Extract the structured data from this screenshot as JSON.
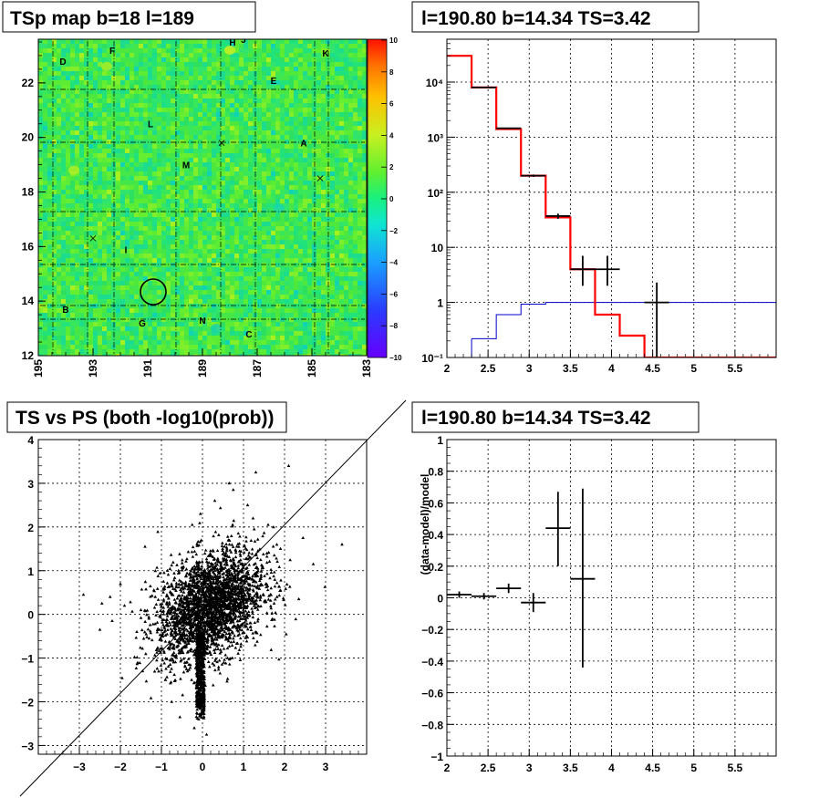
{
  "colors": {
    "model_line": "#ff0000",
    "background_line": "#0000cc",
    "data_marker": "#000000"
  },
  "chart_data": [
    {
      "type": "heatmap",
      "title": "TSp map b=18 l=189",
      "xlim": [
        195,
        183
      ],
      "ylim": [
        12,
        23.6
      ],
      "x_ticks": [
        "195",
        "193",
        "191",
        "189",
        "187",
        "185",
        "183"
      ],
      "y_ticks": [
        "12",
        "14",
        "16",
        "18",
        "20",
        "22"
      ],
      "colorbar": {
        "range": [
          -10,
          10
        ],
        "ticks": [
          "10",
          "8",
          "6",
          "4",
          "2",
          "0",
          "−2",
          "−4",
          "−6",
          "−8",
          "−10"
        ]
      },
      "dominant_level": 0.5,
      "labeled_sources": [
        {
          "name": "D",
          "l": 194.1,
          "b": 22.8
        },
        {
          "name": "F",
          "l": 192.3,
          "b": 23.2
        },
        {
          "name": "H",
          "l": 187.9,
          "b": 23.5
        },
        {
          "name": "J",
          "l": 187.5,
          "b": 23.6
        },
        {
          "name": "K",
          "l": 184.5,
          "b": 23.1
        },
        {
          "name": "E",
          "l": 186.4,
          "b": 22.1
        },
        {
          "name": "L",
          "l": 190.9,
          "b": 20.5
        },
        {
          "name": "A",
          "l": 185.3,
          "b": 19.8
        },
        {
          "name": "M",
          "l": 189.6,
          "b": 19.0
        },
        {
          "name": "I",
          "l": 191.8,
          "b": 15.9
        },
        {
          "name": "B",
          "l": 194.0,
          "b": 13.7
        },
        {
          "name": "G",
          "l": 191.2,
          "b": 13.2
        },
        {
          "name": "N",
          "l": 189.0,
          "b": 13.3
        },
        {
          "name": "C",
          "l": 187.3,
          "b": 12.8
        }
      ],
      "selected_circle": {
        "l": 190.8,
        "b": 14.34
      },
      "cross_markers": [
        {
          "l": 188.3,
          "b": 19.8
        },
        {
          "l": 184.7,
          "b": 18.5
        },
        {
          "l": 193.0,
          "b": 16.3
        }
      ]
    },
    {
      "type": "line",
      "title": "l=190.80 b=14.34 TS=3.42",
      "xlim": [
        2,
        6
      ],
      "ylim": [
        0.1,
        60000
      ],
      "log_y": true,
      "x_ticks": [
        "2",
        "2.5",
        "3",
        "3.5",
        "4",
        "4.5",
        "5",
        "5.5"
      ],
      "y_ticks": [
        "10⁻¹",
        "1",
        "10",
        "10²",
        "10³",
        "10⁴"
      ],
      "grid": true,
      "model_steps": {
        "edges": [
          2,
          2.3,
          2.6,
          2.9,
          3.2,
          3.5,
          3.8,
          4.1,
          4.4,
          6
        ],
        "values": [
          30000,
          8000,
          1400,
          200,
          35,
          4,
          0.6,
          0.25,
          0.1
        ]
      },
      "background_steps": {
        "edges": [
          2.3,
          2.6,
          2.9,
          3.2,
          4.5,
          6
        ],
        "values": [
          0.22,
          0.6,
          0.93,
          1.0,
          1.0
        ]
      },
      "data_points": [
        {
          "x": 2.45,
          "y": 8000,
          "xerr": 0.15,
          "ylo": 7800,
          "yhi": 8200
        },
        {
          "x": 2.75,
          "y": 1450,
          "xerr": 0.15,
          "ylo": 1400,
          "yhi": 1500
        },
        {
          "x": 3.05,
          "y": 200,
          "xerr": 0.15,
          "ylo": 190,
          "yhi": 210
        },
        {
          "x": 3.35,
          "y": 37,
          "xerr": 0.15,
          "ylo": 33,
          "yhi": 41
        },
        {
          "x": 3.65,
          "y": 4,
          "xerr": 0.15,
          "ylo": 2,
          "yhi": 7
        },
        {
          "x": 3.95,
          "y": 4,
          "xerr": 0.15,
          "ylo": 2,
          "yhi": 7
        },
        {
          "x": 4.55,
          "y": 1,
          "xerr": 0.15,
          "ylo": 0.1,
          "yhi": 2.3
        }
      ]
    },
    {
      "type": "scatter",
      "title": "TS vs PS (both -log10(prob))",
      "xlim": [
        -4,
        4
      ],
      "ylim": [
        -3.2,
        4
      ],
      "x_ticks": [
        "−3",
        "−2",
        "−1",
        "0",
        "1",
        "2",
        "3"
      ],
      "y_ticks": [
        "−3",
        "−2",
        "−1",
        "0",
        "1",
        "2",
        "3",
        "4"
      ],
      "grid": true,
      "diagonal_line": "y = x",
      "outlier_points": [
        [
          -2.9,
          0.45
        ],
        [
          -2.5,
          -0.35
        ],
        [
          -2.45,
          0.25
        ],
        [
          -2.25,
          0.4
        ],
        [
          -2.2,
          -0.15
        ],
        [
          -1.9,
          0.2
        ],
        [
          -1.4,
          1.55
        ],
        [
          -1.5,
          0.1
        ],
        [
          -1.3,
          -0.55
        ],
        [
          -1.15,
          0.4
        ],
        [
          -1.6,
          -0.4
        ],
        [
          -0.95,
          0.75
        ],
        [
          0.65,
          3.0
        ],
        [
          0.75,
          2.85
        ],
        [
          1.3,
          3.25
        ],
        [
          2.1,
          3.4
        ],
        [
          1.1,
          2.5
        ],
        [
          1.6,
          2.05
        ],
        [
          2.45,
          1.75
        ],
        [
          3.4,
          1.6
        ],
        [
          2.7,
          1.15
        ],
        [
          1.9,
          1.5
        ],
        [
          -0.75,
          -2.0
        ],
        [
          -0.55,
          -2.35
        ],
        [
          -0.2,
          -2.6
        ],
        [
          0.1,
          -2.75
        ],
        [
          -0.9,
          -1.5
        ],
        [
          -0.05,
          2.3
        ],
        [
          0.3,
          2.6
        ],
        [
          -0.25,
          2.05
        ]
      ],
      "core_cluster": {
        "center": [
          0.2,
          0.2
        ],
        "spread": [
          0.65,
          0.6
        ],
        "count": 2600
      },
      "tail_cluster": {
        "x_range": [
          -0.15,
          0.05
        ],
        "y_range": [
          -2.4,
          -0.4
        ],
        "count": 500
      }
    },
    {
      "type": "line",
      "title": "l=190.80 b=14.34 TS=3.42",
      "ylabel": "(data-model)/model",
      "xlim": [
        2,
        6
      ],
      "ylim": [
        -1,
        1
      ],
      "x_ticks": [
        "2",
        "2.5",
        "3",
        "3.5",
        "4",
        "4.5",
        "5",
        "5.5"
      ],
      "y_ticks": [
        "−1",
        "−0.8",
        "−0.6",
        "−0.4",
        "−0.2",
        "0",
        "0.2",
        "0.4",
        "0.6",
        "0.8",
        "1"
      ],
      "grid": true,
      "points": [
        {
          "x": 2.15,
          "y": 0.02,
          "xerr": 0.15,
          "ylo": 0.0,
          "yhi": 0.04
        },
        {
          "x": 2.45,
          "y": 0.01,
          "xerr": 0.15,
          "ylo": -0.01,
          "yhi": 0.03
        },
        {
          "x": 2.75,
          "y": 0.06,
          "xerr": 0.15,
          "ylo": 0.03,
          "yhi": 0.09
        },
        {
          "x": 3.05,
          "y": -0.03,
          "xerr": 0.15,
          "ylo": -0.09,
          "yhi": 0.03
        },
        {
          "x": 3.35,
          "y": 0.44,
          "xerr": 0.15,
          "ylo": 0.2,
          "yhi": 0.67
        },
        {
          "x": 3.65,
          "y": 0.12,
          "xerr": 0.15,
          "ylo": -0.44,
          "yhi": 0.69
        }
      ]
    }
  ]
}
